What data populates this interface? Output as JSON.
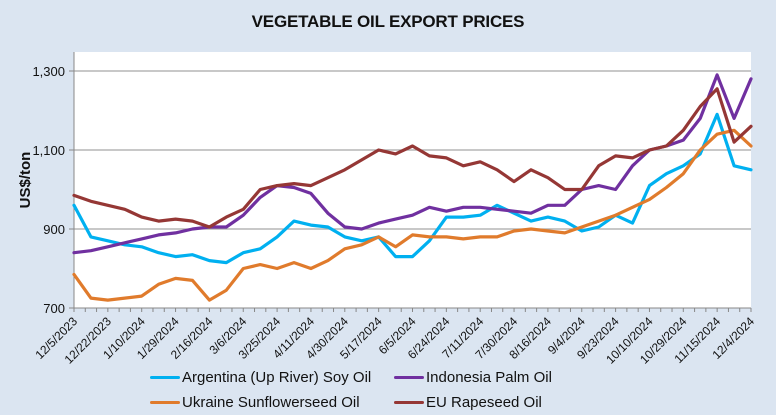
{
  "chart_data": {
    "type": "line",
    "title": "VEGETABLE OIL EXPORT PRICES",
    "xlabel": "",
    "ylabel": "US$/ton",
    "ylim": [
      700,
      1350
    ],
    "yticks": [
      700,
      900,
      1100,
      1300
    ],
    "ytick_labels": [
      "700",
      "900",
      "1,100",
      "1,300"
    ],
    "grid": true,
    "legend_position": "bottom",
    "x_tick_labels": [
      "12/5/2023",
      "12/22/2023",
      "1/10/2024",
      "1/29/2024",
      "2/16/2024",
      "3/6/2024",
      "3/25/2024",
      "4/11/2024",
      "4/30/2024",
      "5/17/2024",
      "6/5/2024",
      "6/24/2024",
      "7/11/2024",
      "7/30/2024",
      "8/16/2024",
      "9/4/2024",
      "9/23/2024",
      "10/10/2024",
      "10/29/2024",
      "11/15/2024",
      "12/4/2024"
    ],
    "series": [
      {
        "name": "Argentina (Up River) Soy Oil",
        "color": "#00b0f0",
        "values": [
          960,
          880,
          870,
          860,
          855,
          840,
          830,
          835,
          820,
          815,
          840,
          850,
          880,
          920,
          910,
          905,
          880,
          870,
          880,
          830,
          830,
          870,
          930,
          930,
          935,
          960,
          940,
          920,
          930,
          920,
          895,
          905,
          935,
          915,
          1010,
          1040,
          1060,
          1090,
          1190,
          1060,
          1050
        ]
      },
      {
        "name": "Indonesia Palm Oil",
        "color": "#7030a0",
        "values": [
          840,
          845,
          855,
          865,
          875,
          885,
          890,
          900,
          905,
          905,
          935,
          980,
          1010,
          1005,
          990,
          940,
          905,
          900,
          915,
          925,
          935,
          955,
          945,
          955,
          955,
          950,
          945,
          940,
          960,
          960,
          1000,
          1010,
          1000,
          1060,
          1100,
          1110,
          1125,
          1180,
          1290,
          1180,
          1280
        ]
      },
      {
        "name": "Ukraine Sunflowerseed Oil",
        "color": "#e07b2c",
        "values": [
          785,
          725,
          720,
          725,
          730,
          760,
          775,
          770,
          720,
          745,
          800,
          810,
          800,
          815,
          800,
          820,
          850,
          860,
          880,
          855,
          885,
          880,
          880,
          875,
          880,
          880,
          895,
          900,
          895,
          890,
          905,
          920,
          935,
          955,
          975,
          1005,
          1040,
          1100,
          1140,
          1150,
          1110
        ]
      },
      {
        "name": "EU Rapeseed Oil",
        "color": "#953735",
        "values": [
          985,
          970,
          960,
          950,
          930,
          920,
          925,
          920,
          905,
          930,
          950,
          1000,
          1010,
          1015,
          1010,
          1030,
          1050,
          1075,
          1100,
          1090,
          1110,
          1085,
          1080,
          1060,
          1070,
          1050,
          1020,
          1050,
          1030,
          1000,
          1000,
          1060,
          1085,
          1080,
          1100,
          1110,
          1150,
          1210,
          1255,
          1120,
          1160
        ]
      }
    ]
  }
}
